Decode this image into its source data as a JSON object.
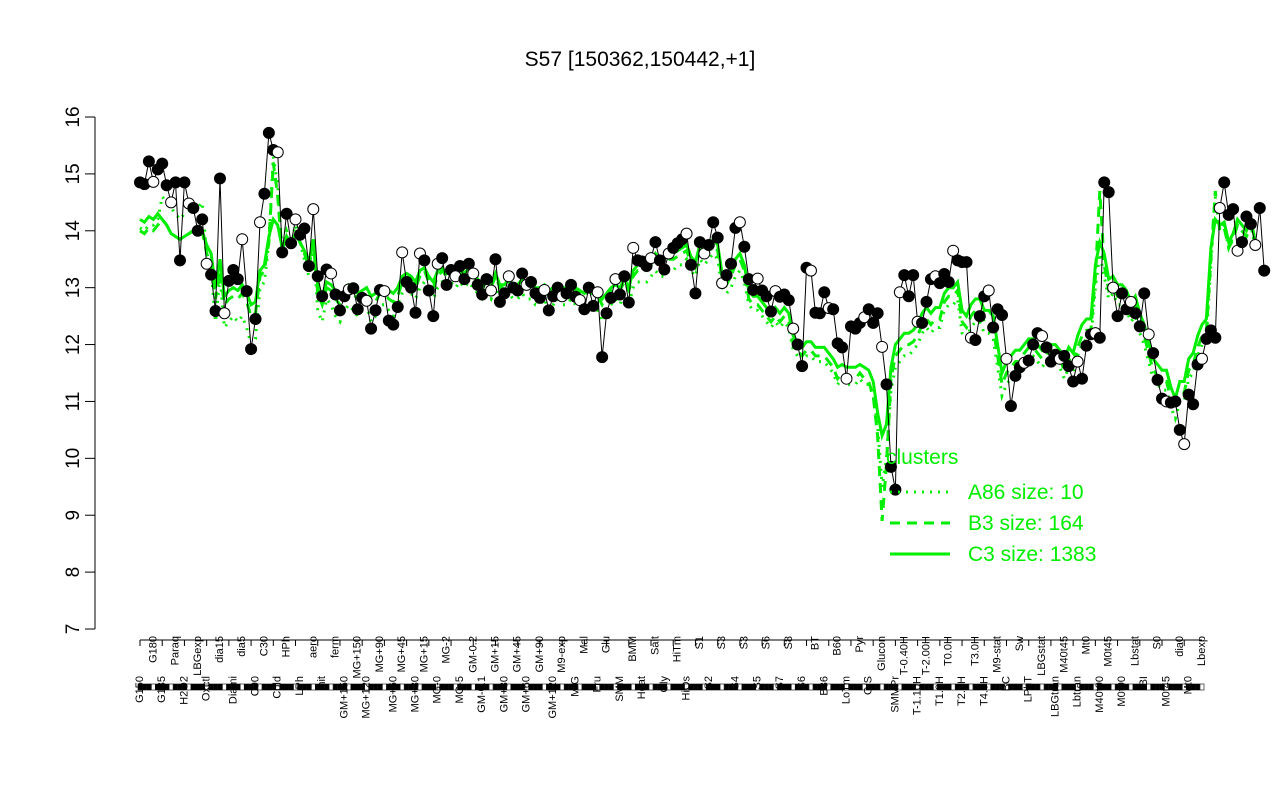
{
  "chart_data": {
    "type": "line",
    "title": "S57 [150362,150442,+1]",
    "xlabel": "",
    "ylabel": "",
    "ylim": [
      7,
      16
    ],
    "yticks": [
      7,
      8,
      9,
      10,
      11,
      12,
      13,
      14,
      15,
      16
    ],
    "x_count": 240,
    "x_tick_labels": [
      "G150",
      "G180",
      "G135",
      "Paraq",
      "H2O2",
      "LBGexp",
      "Oxctl",
      "dia15",
      "Diami",
      "dia5",
      "C90",
      "C30",
      "Cold",
      "HPh",
      "LPh",
      "aero",
      "nit",
      "ferm",
      "GM+150",
      "MG+150",
      "MG+120",
      "MG+90",
      "MG+60",
      "MG+45",
      "MG+30",
      "MG+15",
      "MG-0",
      "MG-2",
      "MG-5",
      "GM-0.2",
      "GM-0.1",
      "GM+15",
      "GM+30",
      "GM+45",
      "GM+60",
      "GM+90",
      "GM+120",
      "M9-exp",
      "M/G",
      "Mal",
      "Fru",
      "Glu",
      "SMM",
      "BMM",
      "Heat",
      "Salt",
      "Gly",
      "HiTm",
      "HiOs",
      "S1",
      "S2",
      "S3",
      "S4",
      "S3",
      "S5",
      "S6",
      "S7",
      "S8",
      "S6",
      "BT",
      "B36",
      "B60",
      "LoTm",
      "Pyr",
      "G/S",
      "Glucon",
      "SMMPr",
      "T-0.40H",
      "T-1.10H",
      "T-2.00H",
      "T1.0H",
      "T0.0H",
      "T2.0H",
      "T3.0H",
      "T4.0H",
      "M9-stat",
      "BC",
      "Sw",
      "LPhT",
      "LBGstat",
      "LBGtran",
      "M40t45",
      "Lbtran",
      "Mt0",
      "M40t90",
      "M0t45",
      "M0t90",
      "Lbstat",
      "BI",
      "S0",
      "M0t45",
      "dia0",
      "Mt0",
      "Lbexp"
    ],
    "series": [
      {
        "name": "",
        "style": "points-connected",
        "color": "#000000",
        "values": [
          14.85,
          14.82,
          15.22,
          14.86,
          15.08,
          15.18,
          14.8,
          14.5,
          14.85,
          13.48,
          14.85,
          14.48,
          14.4,
          14.0,
          14.2,
          13.42,
          13.23,
          12.59,
          14.92,
          12.55,
          13.12,
          13.31,
          13.15,
          13.85,
          12.94,
          11.92,
          12.45,
          14.15,
          14.65,
          15.72,
          15.42,
          15.38,
          13.62,
          14.3,
          13.78,
          14.2,
          13.93,
          14.04,
          13.38,
          14.38,
          13.2,
          12.85,
          13.32,
          13.25,
          12.88,
          12.6,
          12.85,
          12.97,
          12.99,
          12.62,
          12.82,
          12.77,
          12.28,
          12.6,
          12.96,
          12.94,
          12.42,
          12.35,
          12.66,
          13.62,
          13.1,
          13.0,
          12.56,
          13.6,
          13.48,
          12.95,
          12.5,
          13.42,
          13.52,
          13.05,
          13.31,
          13.2,
          13.38,
          13.15,
          13.42,
          13.25,
          13.05,
          12.88,
          13.15,
          12.95,
          13.5,
          12.75,
          12.9,
          13.2,
          13.0,
          12.95,
          13.25,
          13.05,
          13.1,
          12.9,
          12.82,
          12.96,
          12.6,
          12.85,
          13.0,
          12.85,
          12.9,
          13.05,
          12.84,
          12.78,
          12.62,
          13.0,
          12.68,
          12.92,
          11.78,
          12.55,
          12.82,
          13.15,
          12.88,
          13.2,
          12.74,
          13.7,
          13.48,
          13.46,
          13.38,
          13.52,
          13.8,
          13.48,
          13.32,
          13.6,
          13.7,
          13.78,
          13.85,
          13.95,
          13.4,
          12.9,
          13.8,
          13.6,
          13.75,
          14.15,
          13.88,
          13.08,
          13.22,
          13.42,
          14.05,
          14.15,
          13.72,
          13.15,
          12.96,
          13.16,
          12.95,
          12.85,
          12.58,
          12.94,
          12.84,
          12.88,
          12.78,
          12.28,
          12.0,
          11.62,
          13.35,
          13.3,
          12.56,
          12.55,
          12.92,
          12.64,
          12.62,
          12.02,
          11.95,
          11.4,
          12.32,
          12.28,
          12.38,
          12.48,
          12.62,
          12.38,
          12.55,
          11.96,
          11.3,
          9.85,
          9.45,
          12.92,
          13.22,
          12.85,
          13.22,
          12.4,
          12.38,
          12.75,
          13.15,
          13.2,
          13.08,
          13.24,
          13.1,
          13.65,
          13.48,
          13.45,
          13.45,
          12.12,
          12.08,
          12.5,
          12.85,
          12.95,
          12.3,
          12.62,
          12.52,
          11.75,
          10.92,
          11.45,
          11.6,
          11.68,
          11.72,
          12.0,
          12.2,
          12.15,
          11.95,
          11.7,
          11.82,
          11.75,
          11.8,
          11.62,
          11.35,
          11.7,
          11.4,
          11.98,
          12.18,
          12.2,
          12.12,
          14.85,
          14.68,
          13.0,
          12.5,
          12.9,
          12.62,
          12.75,
          12.55,
          12.32,
          12.9,
          12.18,
          11.85,
          11.38,
          11.05,
          11.0,
          10.98,
          11.0,
          10.5,
          10.25,
          11.12,
          10.95,
          11.65,
          11.75,
          12.1,
          12.25,
          12.12,
          14.4,
          14.85,
          14.28,
          14.38,
          13.65,
          13.8,
          14.25,
          14.12,
          13.75,
          14.4,
          13.3
        ]
      },
      {
        "name": "A86 size: 10",
        "style": "dotted",
        "color": "#00ee00",
        "values": [
          14.05,
          14.0,
          14.1,
          14.1,
          14.2,
          14.6,
          14.5,
          14.4,
          14.3,
          14.2,
          14.3,
          14.35,
          14.45,
          14.4,
          14.5,
          13.6,
          13.3,
          12.4,
          13.2,
          12.3,
          12.4,
          12.5,
          12.4,
          12.5,
          12.3,
          12.0,
          12.1,
          13.0,
          13.1,
          13.8,
          15.3,
          14.8,
          13.6,
          14.0,
          13.8,
          14.1,
          13.8,
          13.5,
          13.2,
          13.8,
          12.6,
          12.4,
          12.8,
          12.7,
          12.5,
          12.4,
          12.6,
          12.7,
          12.6,
          12.5,
          12.6,
          12.7,
          12.4,
          12.5,
          12.7,
          12.7,
          12.6,
          12.5,
          12.7,
          12.9,
          13.0,
          12.9,
          12.8,
          13.0,
          13.1,
          12.9,
          12.8,
          13.0,
          13.1,
          13.0,
          13.1,
          13.0,
          13.1,
          13.0,
          13.1,
          13.0,
          12.9,
          12.8,
          12.9,
          12.8,
          13.0,
          12.8,
          12.8,
          12.9,
          12.8,
          12.8,
          12.9,
          12.8,
          12.8,
          12.7,
          12.7,
          12.8,
          12.6,
          12.7,
          12.8,
          12.7,
          12.7,
          12.8,
          12.7,
          12.7,
          12.6,
          12.7,
          12.6,
          12.6,
          12.4,
          12.6,
          12.7,
          12.8,
          12.7,
          12.9,
          12.7,
          13.0,
          13.1,
          13.1,
          13.1,
          13.2,
          13.3,
          13.2,
          13.2,
          13.3,
          13.3,
          13.4,
          13.4,
          13.5,
          13.3,
          13.2,
          13.5,
          13.4,
          13.5,
          13.6,
          13.5,
          13.0,
          12.9,
          13.0,
          13.2,
          13.3,
          13.1,
          12.7,
          12.6,
          12.6,
          12.5,
          12.4,
          12.3,
          12.4,
          12.3,
          12.4,
          12.3,
          11.9,
          11.8,
          11.7,
          11.8,
          11.8,
          11.7,
          11.7,
          11.7,
          11.6,
          11.5,
          11.3,
          11.4,
          11.3,
          11.3,
          11.3,
          11.4,
          11.3,
          11.3,
          11.1,
          10.6,
          9.5,
          10.0,
          11.2,
          11.6,
          11.7,
          11.8,
          11.8,
          11.9,
          12.0,
          12.2,
          12.3,
          12.2,
          12.3,
          12.3,
          12.6,
          12.7,
          12.7,
          12.8,
          12.2,
          12.1,
          12.3,
          12.4,
          12.4,
          12.2,
          12.2,
          12.1,
          11.6,
          11.1,
          11.3,
          11.4,
          11.5,
          11.5,
          11.7,
          11.8,
          11.8,
          11.7,
          11.6,
          11.7,
          11.7,
          11.7,
          11.6,
          11.4,
          11.6,
          11.5,
          11.8,
          12.0,
          12.1,
          12.1,
          13.0,
          13.6,
          13.2,
          12.8,
          12.9,
          12.7,
          12.7,
          12.6,
          12.4,
          12.5,
          12.2,
          12.0,
          11.7,
          11.4,
          11.3,
          11.2,
          11.2,
          10.9,
          10.7,
          11.0,
          11.0,
          11.4,
          11.5,
          11.8,
          12.0,
          12.1,
          13.4,
          14.6,
          14.0,
          14.1,
          13.7,
          13.9,
          14.1,
          14.0,
          13.9,
          14.1,
          13.7
        ]
      },
      {
        "name": "B3 size: 164",
        "style": "dashed",
        "color": "#00ee00",
        "values": [
          14.0,
          13.95,
          14.05,
          14.0,
          14.1,
          14.2,
          14.1,
          13.95,
          13.9,
          13.85,
          13.9,
          13.95,
          14.0,
          13.95,
          14.0,
          13.6,
          13.4,
          12.8,
          13.3,
          12.7,
          12.8,
          12.85,
          12.8,
          12.9,
          12.75,
          12.5,
          12.55,
          13.2,
          13.3,
          13.8,
          15.2,
          14.6,
          13.6,
          13.9,
          13.75,
          13.95,
          13.8,
          13.6,
          13.35,
          13.8,
          12.9,
          12.7,
          13.0,
          12.95,
          12.8,
          12.7,
          12.85,
          12.95,
          12.9,
          12.8,
          12.85,
          12.9,
          12.7,
          12.75,
          12.9,
          12.9,
          12.8,
          12.75,
          12.85,
          13.1,
          13.15,
          13.1,
          13.0,
          13.2,
          13.3,
          13.1,
          13.0,
          13.2,
          13.3,
          13.2,
          13.3,
          13.2,
          13.3,
          13.2,
          13.3,
          13.2,
          13.1,
          13.0,
          13.1,
          13.0,
          13.2,
          13.0,
          13.0,
          13.1,
          13.0,
          13.0,
          13.1,
          13.0,
          13.0,
          12.95,
          12.95,
          13.0,
          12.85,
          12.95,
          13.0,
          12.95,
          12.95,
          13.0,
          12.95,
          12.9,
          12.85,
          12.95,
          12.85,
          12.85,
          12.7,
          12.85,
          12.95,
          13.0,
          12.95,
          13.1,
          12.95,
          13.2,
          13.3,
          13.3,
          13.3,
          13.4,
          13.5,
          13.4,
          13.4,
          13.5,
          13.5,
          13.55,
          13.6,
          13.65,
          13.45,
          13.35,
          13.65,
          13.55,
          13.65,
          13.75,
          13.65,
          13.15,
          13.05,
          13.2,
          13.4,
          13.5,
          13.3,
          12.8,
          12.7,
          12.7,
          12.6,
          12.5,
          12.4,
          12.5,
          12.4,
          12.5,
          12.4,
          12.0,
          11.9,
          11.8,
          11.9,
          11.9,
          11.8,
          11.8,
          11.8,
          11.7,
          11.6,
          11.4,
          11.5,
          11.4,
          11.4,
          11.4,
          11.5,
          11.4,
          11.35,
          11.1,
          10.4,
          8.9,
          9.9,
          11.4,
          11.8,
          11.9,
          12.0,
          12.0,
          12.05,
          12.15,
          12.35,
          12.45,
          12.35,
          12.45,
          12.45,
          12.75,
          12.85,
          12.85,
          12.95,
          12.4,
          12.3,
          12.5,
          12.6,
          12.6,
          12.4,
          12.4,
          12.3,
          11.8,
          11.3,
          11.5,
          11.6,
          11.7,
          11.7,
          11.85,
          11.95,
          11.95,
          11.85,
          11.75,
          11.85,
          11.85,
          11.85,
          11.75,
          11.55,
          11.75,
          11.65,
          11.95,
          12.15,
          12.25,
          12.25,
          13.2,
          14.7,
          13.4,
          12.95,
          13.0,
          12.85,
          12.85,
          12.75,
          12.55,
          12.65,
          12.35,
          12.15,
          11.85,
          11.55,
          11.45,
          11.35,
          11.35,
          11.05,
          10.85,
          11.15,
          11.15,
          11.55,
          11.65,
          11.95,
          12.15,
          12.25,
          13.5,
          14.7,
          14.0,
          14.05,
          13.7,
          13.85,
          14.1,
          14.0,
          13.9,
          14.1,
          13.7
        ]
      },
      {
        "name": "C3 size: 1383",
        "style": "solid",
        "color": "#00ee00",
        "values": [
          14.2,
          14.15,
          14.25,
          14.2,
          14.3,
          14.2,
          14.1,
          13.95,
          13.9,
          13.85,
          13.9,
          13.95,
          14.0,
          13.95,
          14.0,
          13.75,
          13.6,
          13.0,
          13.5,
          12.85,
          12.95,
          13.0,
          12.95,
          13.05,
          12.9,
          12.7,
          12.75,
          13.3,
          13.4,
          13.9,
          14.2,
          14.1,
          13.7,
          13.9,
          13.8,
          13.95,
          13.8,
          13.65,
          13.45,
          13.85,
          13.05,
          12.85,
          13.1,
          13.05,
          12.95,
          12.85,
          12.95,
          13.05,
          13.0,
          12.9,
          12.95,
          13.0,
          12.85,
          12.9,
          13.0,
          13.0,
          12.95,
          12.9,
          13.0,
          13.2,
          13.25,
          13.2,
          13.1,
          13.3,
          13.35,
          13.2,
          13.1,
          13.3,
          13.35,
          13.25,
          13.35,
          13.25,
          13.35,
          13.25,
          13.35,
          13.25,
          13.15,
          13.05,
          13.15,
          13.05,
          13.25,
          13.05,
          13.05,
          13.15,
          13.05,
          13.05,
          13.15,
          13.05,
          13.05,
          13.0,
          13.0,
          13.05,
          12.95,
          13.0,
          13.05,
          13.0,
          13.0,
          13.05,
          13.0,
          12.95,
          12.9,
          13.0,
          12.9,
          12.9,
          12.8,
          12.9,
          13.0,
          13.05,
          13.0,
          13.15,
          13.0,
          13.3,
          13.4,
          13.4,
          13.4,
          13.5,
          13.6,
          13.5,
          13.5,
          13.6,
          13.6,
          13.65,
          13.7,
          13.75,
          13.55,
          13.45,
          13.75,
          13.65,
          13.75,
          13.85,
          13.75,
          13.25,
          13.15,
          13.3,
          13.5,
          13.6,
          13.4,
          12.95,
          12.85,
          12.85,
          12.75,
          12.65,
          12.55,
          12.65,
          12.55,
          12.65,
          12.55,
          12.15,
          12.05,
          11.95,
          12.05,
          12.05,
          11.95,
          11.95,
          11.95,
          11.85,
          11.75,
          11.6,
          11.65,
          11.6,
          11.6,
          11.6,
          11.65,
          11.6,
          11.55,
          11.35,
          10.8,
          10.4,
          10.6,
          11.6,
          12.0,
          12.1,
          12.2,
          12.2,
          12.25,
          12.35,
          12.55,
          12.65,
          12.55,
          12.65,
          12.65,
          12.9,
          13.0,
          13.0,
          13.1,
          12.6,
          12.5,
          12.7,
          12.8,
          12.8,
          12.6,
          12.6,
          12.5,
          12.0,
          11.5,
          11.7,
          11.8,
          11.9,
          11.9,
          12.0,
          12.1,
          12.1,
          12.0,
          11.9,
          12.0,
          12.0,
          12.0,
          11.9,
          11.75,
          11.95,
          11.85,
          12.15,
          12.35,
          12.45,
          12.45,
          13.4,
          13.8,
          13.6,
          13.15,
          13.2,
          13.05,
          13.05,
          12.95,
          12.75,
          12.85,
          12.55,
          12.35,
          12.05,
          11.75,
          11.65,
          11.55,
          11.55,
          11.25,
          11.05,
          11.35,
          11.35,
          11.75,
          11.85,
          12.15,
          12.35,
          12.45,
          13.7,
          14.2,
          14.1,
          14.15,
          13.8,
          13.95,
          14.2,
          14.1,
          14.0,
          14.2,
          13.8
        ]
      }
    ],
    "legend": {
      "title": "clusters",
      "position": "lower-right"
    },
    "grid": false
  }
}
